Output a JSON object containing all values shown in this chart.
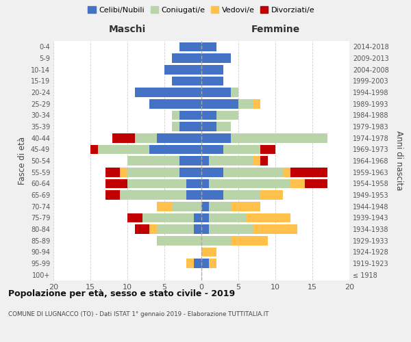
{
  "age_groups": [
    "100+",
    "95-99",
    "90-94",
    "85-89",
    "80-84",
    "75-79",
    "70-74",
    "65-69",
    "60-64",
    "55-59",
    "50-54",
    "45-49",
    "40-44",
    "35-39",
    "30-34",
    "25-29",
    "20-24",
    "15-19",
    "10-14",
    "5-9",
    "0-4"
  ],
  "birth_years": [
    "≤ 1918",
    "1919-1923",
    "1924-1928",
    "1929-1933",
    "1934-1938",
    "1939-1943",
    "1944-1948",
    "1949-1953",
    "1954-1958",
    "1959-1963",
    "1964-1968",
    "1969-1973",
    "1974-1978",
    "1979-1983",
    "1984-1988",
    "1989-1993",
    "1994-1998",
    "1999-2003",
    "2004-2008",
    "2009-2013",
    "2014-2018"
  ],
  "males_celibi": [
    0,
    1,
    0,
    0,
    1,
    1,
    0,
    2,
    2,
    3,
    3,
    7,
    6,
    3,
    3,
    7,
    9,
    4,
    5,
    4,
    3
  ],
  "males_coniugati": [
    0,
    0,
    0,
    6,
    5,
    7,
    4,
    9,
    8,
    7,
    7,
    7,
    3,
    1,
    1,
    0,
    0,
    0,
    0,
    0,
    0
  ],
  "males_vedovi": [
    0,
    1,
    0,
    0,
    1,
    0,
    2,
    0,
    0,
    1,
    0,
    0,
    0,
    0,
    0,
    0,
    0,
    0,
    0,
    0,
    0
  ],
  "males_divorziati": [
    0,
    0,
    0,
    0,
    2,
    2,
    0,
    2,
    3,
    2,
    0,
    1,
    3,
    0,
    0,
    0,
    0,
    0,
    0,
    0,
    0
  ],
  "females_celibi": [
    0,
    1,
    0,
    0,
    1,
    1,
    1,
    3,
    1,
    3,
    1,
    3,
    4,
    2,
    2,
    5,
    4,
    3,
    3,
    4,
    2
  ],
  "females_coniugati": [
    0,
    0,
    0,
    4,
    6,
    5,
    3,
    5,
    11,
    8,
    6,
    5,
    13,
    2,
    3,
    2,
    1,
    0,
    0,
    0,
    0
  ],
  "females_vedovi": [
    0,
    1,
    2,
    5,
    6,
    6,
    4,
    3,
    2,
    1,
    1,
    0,
    0,
    0,
    0,
    1,
    0,
    0,
    0,
    0,
    0
  ],
  "females_divorziati": [
    0,
    0,
    0,
    0,
    0,
    0,
    0,
    0,
    3,
    5,
    1,
    2,
    0,
    0,
    0,
    0,
    0,
    0,
    0,
    0,
    0
  ],
  "color_celibi": "#4472c4",
  "color_coniugati": "#b8d4a8",
  "color_vedovi": "#ffc04c",
  "color_divorziati": "#c00000",
  "title_main": "Popolazione per età, sesso e stato civile - 2019",
  "title_sub": "COMUNE DI LUGNACCO (TO) - Dati ISTAT 1° gennaio 2019 - Elaborazione TUTTITALIA.IT",
  "ylabel_left": "Fasce di età",
  "ylabel_right": "Anni di nascita",
  "xlabel_left": "Maschi",
  "xlabel_right": "Femmine",
  "xlim": 20,
  "legend_labels": [
    "Celibi/Nubili",
    "Coniugati/e",
    "Vedovi/e",
    "Divorziati/e"
  ],
  "bg_color": "#f0f0f0",
  "plot_bg": "#ffffff"
}
